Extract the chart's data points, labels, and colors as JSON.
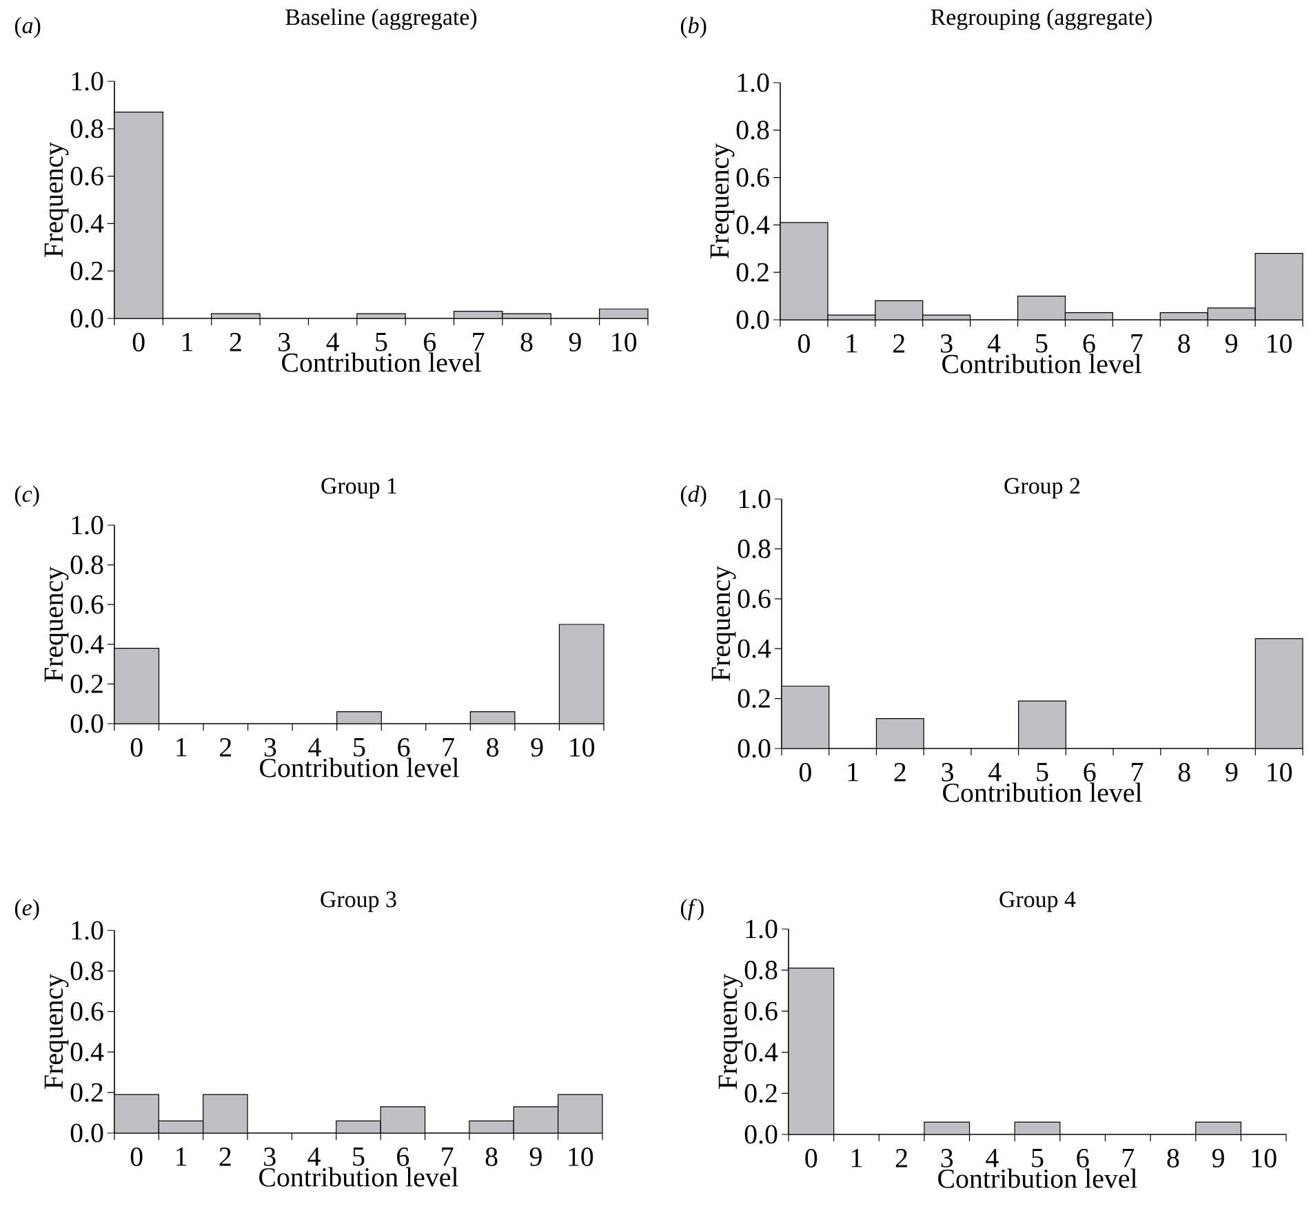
{
  "chart_data": [
    {
      "type": "bar",
      "title": "Baseline (aggregate)",
      "annotations": [
        "(*a*)"
      ],
      "xlabel": "Contribution level",
      "ylabel": "Frequency",
      "categories": [
        "0",
        "1",
        "2",
        "3",
        "4",
        "5",
        "6",
        "7",
        "8",
        "9",
        "10"
      ],
      "values": [
        0.87,
        0,
        0.02,
        0,
        0,
        0.02,
        0,
        0.03,
        0.02,
        0,
        0.04
      ],
      "color": "#bfc0c4",
      "ylim": [
        0,
        1
      ],
      "yticks": [
        {
          "value": 0,
          "label": "0.0"
        },
        {
          "value": 0.2,
          "label": "0.2"
        },
        {
          "value": 0.4,
          "label": "0.4"
        },
        {
          "value": 0.6,
          "label": "0.6"
        },
        {
          "value": 0.8,
          "label": "0.8"
        },
        {
          "value": 1,
          "label": "1.0"
        }
      ]
    },
    {
      "type": "bar",
      "title": "Regrouping (aggregate)",
      "annotations": [
        "(*b*)"
      ],
      "xlabel": "Contribution level",
      "ylabel": "Frequency",
      "categories": [
        "0",
        "1",
        "2",
        "3",
        "4",
        "5",
        "6",
        "7",
        "8",
        "9",
        "10"
      ],
      "values": [
        0.41,
        0.02,
        0.08,
        0.02,
        0,
        0.1,
        0.03,
        0,
        0.03,
        0.05,
        0.28
      ],
      "color": "#bfc0c4",
      "ylim": [
        0,
        1
      ],
      "yticks": [
        {
          "value": 0,
          "label": "0.0"
        },
        {
          "value": 0.2,
          "label": "0.2"
        },
        {
          "value": 0.4,
          "label": "0.4"
        },
        {
          "value": 0.6,
          "label": "0.6"
        },
        {
          "value": 0.8,
          "label": "0.8"
        },
        {
          "value": 1,
          "label": "1.0"
        }
      ]
    },
    {
      "type": "bar",
      "title": "Group 1",
      "annotations": [
        "(*c*)"
      ],
      "xlabel": "Contribution level",
      "ylabel": "Frequency",
      "categories": [
        "0",
        "1",
        "2",
        "3",
        "4",
        "5",
        "6",
        "7",
        "8",
        "9",
        "10"
      ],
      "values": [
        0.38,
        0,
        0,
        0,
        0,
        0.06,
        0,
        0,
        0.06,
        0,
        0.5
      ],
      "color": "#bfc0c4",
      "ylim": [
        0,
        1
      ],
      "yticks": [
        {
          "value": 0,
          "label": "0.0"
        },
        {
          "value": 0.2,
          "label": "0.2"
        },
        {
          "value": 0.4,
          "label": "0.4"
        },
        {
          "value": 0.6,
          "label": "0.6"
        },
        {
          "value": 0.8,
          "label": "0.8"
        },
        {
          "value": 1,
          "label": "1.0"
        }
      ]
    },
    {
      "type": "bar",
      "title": "Group 2",
      "annotations": [
        "(*d*)"
      ],
      "xlabel": "Contribution level",
      "ylabel": "Frequency",
      "categories": [
        "0",
        "1",
        "2",
        "3",
        "4",
        "5",
        "6",
        "7",
        "8",
        "9",
        "10"
      ],
      "values": [
        0.25,
        0,
        0.12,
        0,
        0,
        0.19,
        0,
        0,
        0,
        0,
        0.44
      ],
      "color": "#bfc0c4",
      "ylim": [
        0,
        1
      ],
      "yticks": [
        {
          "value": 0,
          "label": "0.0"
        },
        {
          "value": 0.2,
          "label": "0.2"
        },
        {
          "value": 0.4,
          "label": "0.4"
        },
        {
          "value": 0.6,
          "label": "0.6"
        },
        {
          "value": 0.8,
          "label": "0.8"
        },
        {
          "value": 1,
          "label": "1.0"
        }
      ]
    },
    {
      "type": "bar",
      "title": "Group 3",
      "annotations": [
        "(*e*)"
      ],
      "xlabel": "Contribution level",
      "ylabel": "Frequency",
      "categories": [
        "0",
        "1",
        "2",
        "3",
        "4",
        "5",
        "6",
        "7",
        "8",
        "9",
        "10"
      ],
      "values": [
        0.19,
        0.06,
        0.19,
        0,
        0,
        0.06,
        0.13,
        0,
        0.06,
        0.13,
        0.19
      ],
      "color": "#bfc0c4",
      "ylim": [
        0,
        1
      ],
      "yticks": [
        {
          "value": 0,
          "label": "0.0"
        },
        {
          "value": 0.2,
          "label": "0.2"
        },
        {
          "value": 0.4,
          "label": "0.4"
        },
        {
          "value": 0.6,
          "label": "0.6"
        },
        {
          "value": 0.8,
          "label": "0.8"
        },
        {
          "value": 1,
          "label": "1.0"
        }
      ]
    },
    {
      "type": "bar",
      "title": "Group 4",
      "annotations": [
        "(*f*)"
      ],
      "xlabel": "Contribution level",
      "ylabel": "Frequency",
      "categories": [
        "0",
        "1",
        "2",
        "3",
        "4",
        "5",
        "6",
        "7",
        "8",
        "9",
        "10"
      ],
      "values": [
        0.81,
        0,
        0,
        0.06,
        0,
        0.06,
        0,
        0,
        0,
        0.06,
        0
      ],
      "color": "#bfc0c4",
      "ylim": [
        0,
        1
      ],
      "yticks": [
        {
          "value": 0,
          "label": "0.0"
        },
        {
          "value": 0.2,
          "label": "0.2"
        },
        {
          "value": 0.4,
          "label": "0.4"
        },
        {
          "value": 0.6,
          "label": "0.6"
        },
        {
          "value": 0.8,
          "label": "0.8"
        },
        {
          "value": 1,
          "label": "1.0"
        }
      ]
    }
  ]
}
